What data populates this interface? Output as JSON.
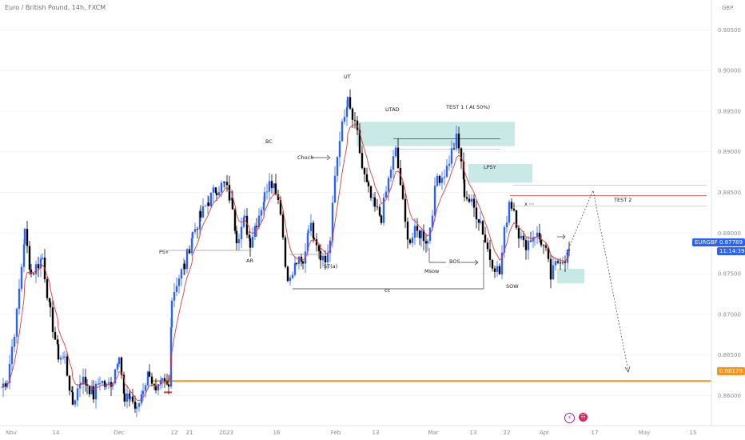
{
  "header": {
    "title": "Euro / British Pound, 14h, FXCM"
  },
  "axis": {
    "currency": "GBP",
    "y_ticks": [
      "0.90500",
      "0.90000",
      "0.89500",
      "0.89000",
      "0.88500",
      "0.88000",
      "0.87500",
      "0.87000",
      "0.86500",
      "0.86000"
    ],
    "x_ticks": [
      "Nov",
      "14",
      "Dec",
      "12",
      "21",
      "2023",
      "16",
      "Feb",
      "13",
      "Mar",
      "13",
      "22",
      "Apr",
      "17",
      "May",
      "15"
    ]
  },
  "price_tags": {
    "symbol": "EURGBP",
    "price": "0.87789",
    "countdown": "11:14:39",
    "level": "0.86179",
    "symbol_color": "#2962ff",
    "level_color": "#f7931a"
  },
  "annotations": {
    "psy": "PSY",
    "ar": "AR",
    "bc": "BC",
    "choch": "Choch",
    "st": "ST(a)",
    "ut": "UT",
    "utad": "UTAD",
    "test1": "TEST 1 ( At 50%)",
    "lpsy": "LPSY",
    "msow": "Msow",
    "bos": "BOS",
    "cc": "cc",
    "sow": "SOW",
    "test2": "TEST 2",
    "x": "x"
  },
  "events": {
    "e1": "⚡",
    "e2": "☷"
  },
  "colors": {
    "bull": "#2962ff",
    "bear": "#000000",
    "ma": "#e53935",
    "zone": "#b2dfdb",
    "level": "#f7931a",
    "red_line": "#e53935"
  },
  "chart_data": {
    "type": "candlestick",
    "title": "Euro / British Pound, 14h, FXCM",
    "ylim": [
      0.8565,
      0.9075
    ],
    "last_price": 0.87789,
    "horizontal_level": 0.86179,
    "waypoints": [
      [
        0,
        0.861
      ],
      [
        8,
        0.862
      ],
      [
        20,
        0.87
      ],
      [
        30,
        0.88
      ],
      [
        38,
        0.875
      ],
      [
        52,
        0.877
      ],
      [
        62,
        0.87
      ],
      [
        72,
        0.865
      ],
      [
        80,
        0.8645
      ],
      [
        90,
        0.859
      ],
      [
        100,
        0.862
      ],
      [
        108,
        0.8615
      ],
      [
        116,
        0.86
      ],
      [
        124,
        0.862
      ],
      [
        132,
        0.861
      ],
      [
        140,
        0.862
      ],
      [
        148,
        0.8655
      ],
      [
        155,
        0.859
      ],
      [
        162,
        0.86
      ],
      [
        170,
        0.858
      ],
      [
        178,
        0.861
      ],
      [
        186,
        0.863
      ],
      [
        194,
        0.86
      ],
      [
        202,
        0.8615
      ],
      [
        210,
        0.861
      ],
      [
        214,
        0.872
      ],
      [
        220,
        0.874
      ],
      [
        230,
        0.876
      ],
      [
        240,
        0.88
      ],
      [
        250,
        0.882
      ],
      [
        260,
        0.884
      ],
      [
        270,
        0.8855
      ],
      [
        280,
        0.886
      ],
      [
        290,
        0.8835
      ],
      [
        295,
        0.8795
      ],
      [
        305,
        0.8815
      ],
      [
        312,
        0.879
      ],
      [
        320,
        0.8815
      ],
      [
        330,
        0.8845
      ],
      [
        336,
        0.887
      ],
      [
        344,
        0.8855
      ],
      [
        350,
        0.883
      ],
      [
        356,
        0.876
      ],
      [
        362,
        0.874
      ],
      [
        370,
        0.8765
      ],
      [
        378,
        0.876
      ],
      [
        385,
        0.881
      ],
      [
        392,
        0.88
      ],
      [
        400,
        0.8775
      ],
      [
        406,
        0.8765
      ],
      [
        412,
        0.879
      ],
      [
        418,
        0.887
      ],
      [
        424,
        0.892
      ],
      [
        430,
        0.894
      ],
      [
        434,
        0.896
      ],
      [
        440,
        0.894
      ],
      [
        446,
        0.892
      ],
      [
        452,
        0.888
      ],
      [
        460,
        0.885
      ],
      [
        468,
        0.883
      ],
      [
        476,
        0.882
      ],
      [
        482,
        0.885
      ],
      [
        488,
        0.888
      ],
      [
        494,
        0.89
      ],
      [
        500,
        0.886
      ],
      [
        506,
        0.881
      ],
      [
        512,
        0.879
      ],
      [
        518,
        0.88
      ],
      [
        526,
        0.88
      ],
      [
        534,
        0.879
      ],
      [
        540,
        0.883
      ],
      [
        546,
        0.887
      ],
      [
        552,
        0.887
      ],
      [
        558,
        0.888
      ],
      [
        564,
        0.89
      ],
      [
        570,
        0.8915
      ],
      [
        576,
        0.889
      ],
      [
        580,
        0.885
      ],
      [
        586,
        0.884
      ],
      [
        592,
        0.883
      ],
      [
        600,
        0.8815
      ],
      [
        606,
        0.879
      ],
      [
        612,
        0.877
      ],
      [
        618,
        0.876
      ],
      [
        624,
        0.875
      ],
      [
        630,
        0.88
      ],
      [
        636,
        0.884
      ],
      [
        642,
        0.883
      ],
      [
        648,
        0.88
      ],
      [
        654,
        0.8785
      ],
      [
        660,
        0.879
      ],
      [
        668,
        0.88
      ],
      [
        676,
        0.879
      ],
      [
        682,
        0.8775
      ],
      [
        688,
        0.8745
      ],
      [
        694,
        0.876
      ],
      [
        700,
        0.877
      ],
      [
        706,
        0.877
      ],
      [
        711,
        0.8779
      ]
    ]
  }
}
